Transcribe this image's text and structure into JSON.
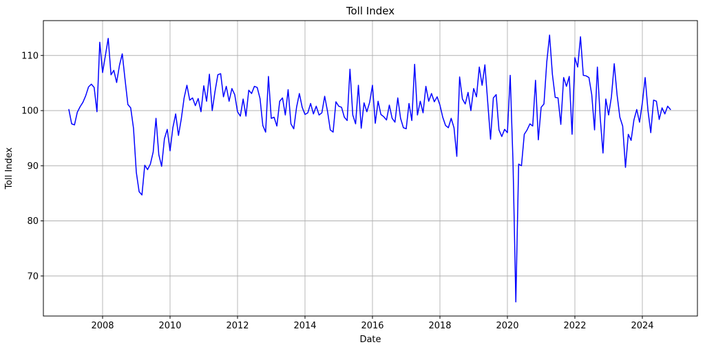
{
  "figure": {
    "title": "Toll Index",
    "background": "#ffffff",
    "x_axis": {
      "label": "Date",
      "tick_labels": [
        "2008",
        "2010",
        "2012",
        "2014",
        "2016",
        "2018",
        "2020",
        "2022",
        "2024"
      ],
      "tick_years": [
        2008,
        2010,
        2012,
        2014,
        2016,
        2018,
        2020,
        2022,
        2024
      ]
    },
    "y_axis": {
      "label": "Toll Index",
      "tick_labels": [
        "70",
        "80",
        "90",
        "100",
        "110"
      ],
      "tick_values": [
        70,
        80,
        90,
        100,
        110
      ]
    },
    "colors": {
      "line": "#0000ff",
      "grid": "#b0b0b0",
      "spine": "#000000",
      "text": "#000000",
      "background": "#ffffff"
    }
  },
  "chart_data": {
    "type": "line",
    "title": "Toll Index",
    "xlabel": "Date",
    "ylabel": "Toll Index",
    "frequency": "monthly",
    "x_start": "2007-01",
    "x_end": "2024-11",
    "xlim": [
      2006.2,
      2025.65
    ],
    "ylim": [
      62.7,
      116.2
    ],
    "grid": true,
    "legend_position": "none",
    "series": [
      {
        "name": "Toll Index",
        "values": [
          100.2,
          97.6,
          97.4,
          99.7,
          100.7,
          101.5,
          102.7,
          104.3,
          104.8,
          104.2,
          99.8,
          112.4,
          106.9,
          110.0,
          113.1,
          106.5,
          107.3,
          105.1,
          108.2,
          110.3,
          105.6,
          101.1,
          100.5,
          96.8,
          88.8,
          85.3,
          84.7,
          90.1,
          89.3,
          90.3,
          92.5,
          98.6,
          92.0,
          89.9,
          94.9,
          96.6,
          92.7,
          96.9,
          99.4,
          95.5,
          98.5,
          102.3,
          104.6,
          101.9,
          102.3,
          100.9,
          102.2,
          99.8,
          104.5,
          101.7,
          106.6,
          100.0,
          103.5,
          106.5,
          106.7,
          102.5,
          104.4,
          101.7,
          104.0,
          102.9,
          99.8,
          99.0,
          102.1,
          99.0,
          103.7,
          103.1,
          104.4,
          104.2,
          102.2,
          97.3,
          96.1,
          106.2,
          98.6,
          98.8,
          97.2,
          101.7,
          102.3,
          99.2,
          103.8,
          97.6,
          96.7,
          100.6,
          103.1,
          100.6,
          99.3,
          99.6,
          101.3,
          99.4,
          100.8,
          99.2,
          99.6,
          102.6,
          99.9,
          96.5,
          96.1,
          101.6,
          100.8,
          100.6,
          98.8,
          98.2,
          107.5,
          99.2,
          97.6,
          104.6,
          96.8,
          101.4,
          99.8,
          101.5,
          104.6,
          97.7,
          101.7,
          99.3,
          98.9,
          98.3,
          101.0,
          98.6,
          97.9,
          102.3,
          98.6,
          96.9,
          96.7,
          101.3,
          98.2,
          108.4,
          99.2,
          101.7,
          99.6,
          104.4,
          101.7,
          103.1,
          101.6,
          102.5,
          101.0,
          98.8,
          97.3,
          96.9,
          98.6,
          96.9,
          91.7,
          106.1,
          102.1,
          101.2,
          103.3,
          100.0,
          104.0,
          102.5,
          107.9,
          104.6,
          108.3,
          101.5,
          94.8,
          102.3,
          102.9,
          96.5,
          95.3,
          96.6,
          96.0,
          106.4,
          90.5,
          65.3,
          90.3,
          90.0,
          95.7,
          96.5,
          97.6,
          97.2,
          105.5,
          94.7,
          100.6,
          101.2,
          108.8,
          113.7,
          106.6,
          102.4,
          102.3,
          97.5,
          106.0,
          104.4,
          106.2,
          95.7,
          109.6,
          107.9,
          113.4,
          106.4,
          106.3,
          106.0,
          102.9,
          96.5,
          107.9,
          98.8,
          92.3,
          102.1,
          99.2,
          102.5,
          108.5,
          102.9,
          98.8,
          97.2,
          89.7,
          95.7,
          94.6,
          98.3,
          100.2,
          97.9,
          101.4,
          106.0,
          100.0,
          96.0,
          101.9,
          101.7,
          98.4,
          100.5,
          99.4,
          100.8,
          100.2
        ]
      }
    ]
  }
}
